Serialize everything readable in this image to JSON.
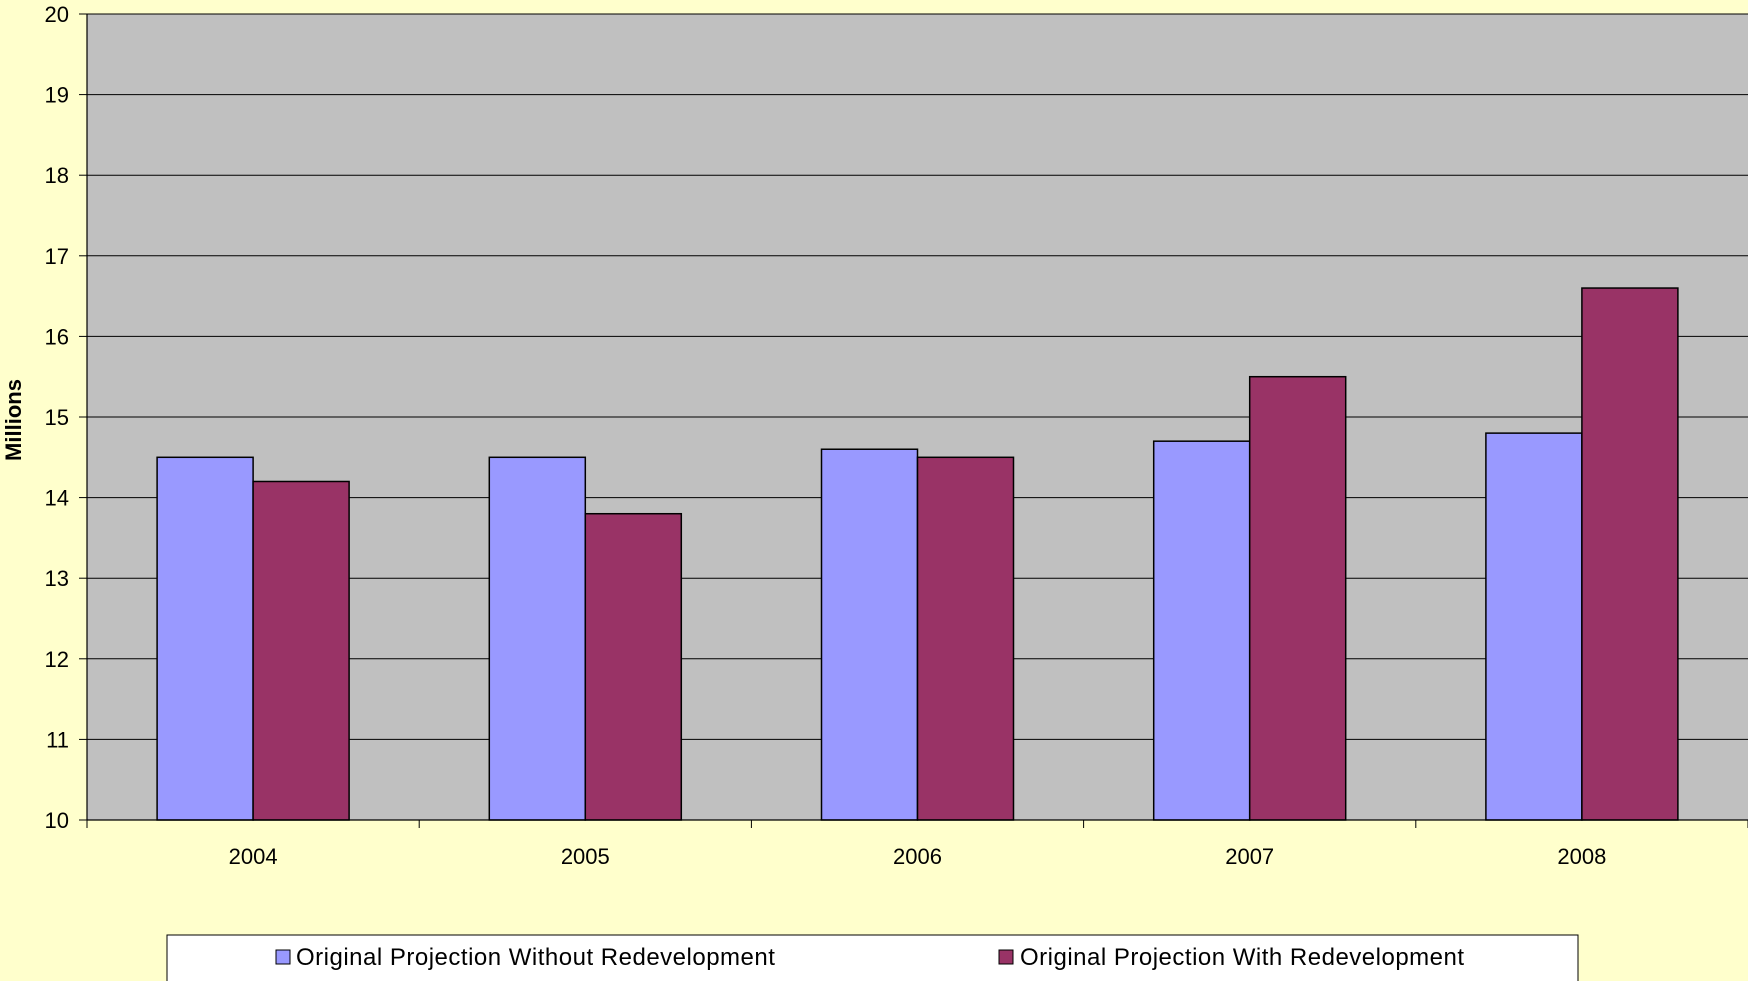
{
  "chart_data": {
    "type": "bar",
    "title": "",
    "xlabel": "",
    "ylabel": "Millions",
    "categories": [
      "2004",
      "2005",
      "2006",
      "2007",
      "2008"
    ],
    "series": [
      {
        "name": "Original Projection Without Redevelopment",
        "color": "#9999FF",
        "values": [
          14.5,
          14.5,
          14.6,
          14.7,
          14.8
        ]
      },
      {
        "name": "Original Projection With Redevelopment",
        "color": "#993366",
        "values": [
          14.2,
          13.8,
          14.5,
          15.5,
          16.6
        ]
      }
    ],
    "ylim": [
      10,
      20
    ],
    "yticks": [
      "10",
      "11",
      "12",
      "13",
      "14",
      "15",
      "16",
      "17",
      "18",
      "19",
      "20"
    ],
    "grid": true,
    "legend_position": "bottom",
    "colors": {
      "background": "#FFFFCC",
      "plot_area": "#C0C0C0",
      "gridline": "#000000"
    }
  }
}
